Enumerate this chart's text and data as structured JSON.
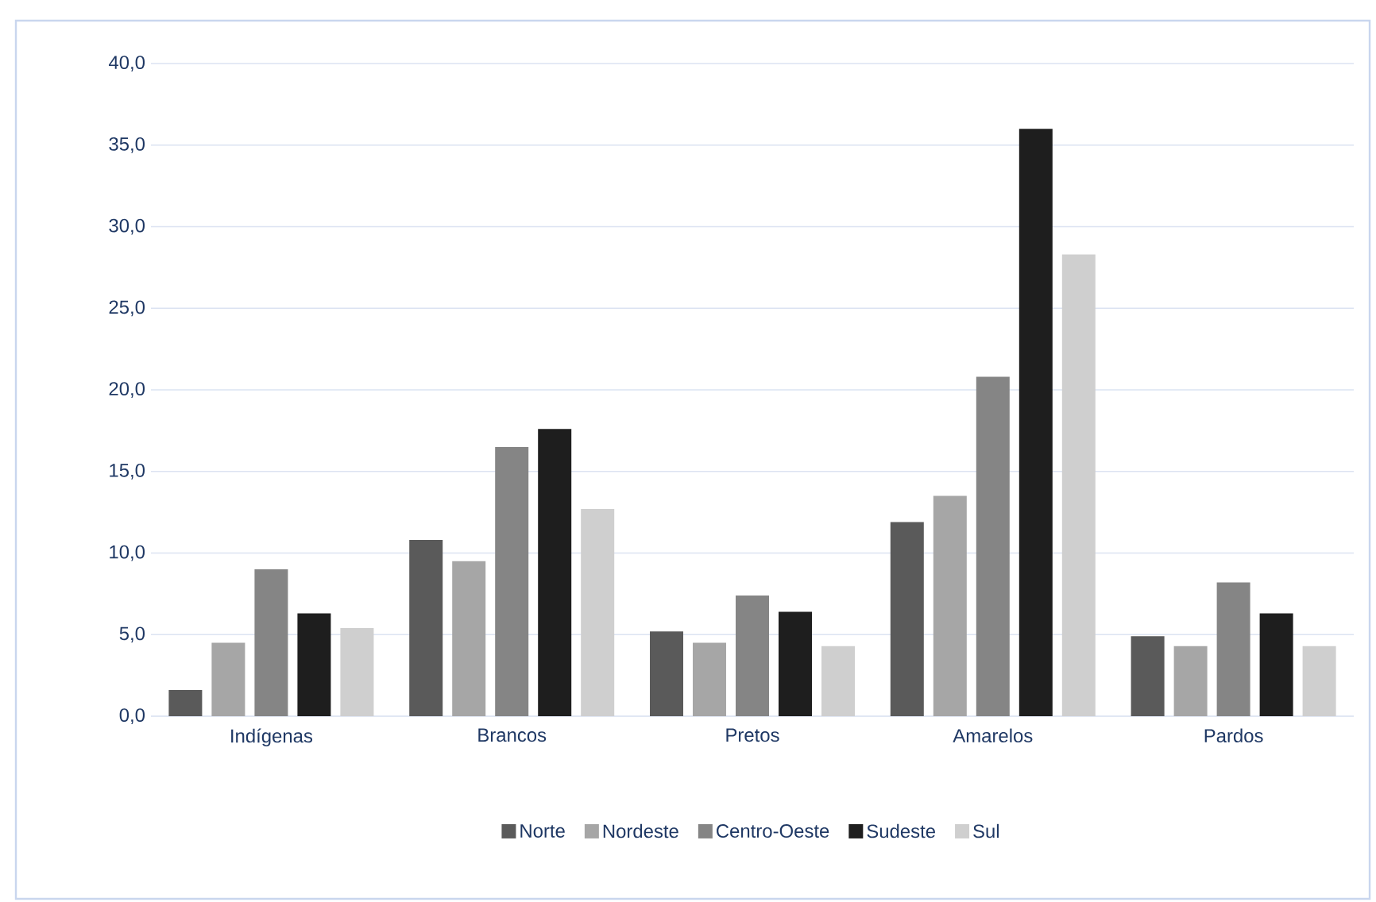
{
  "chart_data": {
    "type": "bar",
    "categories": [
      "Indígenas",
      "Brancos",
      "Pretos",
      "Amarelos",
      "Pardos"
    ],
    "series": [
      {
        "name": "Norte",
        "color": "#5a5a5a",
        "values": [
          1.6,
          10.8,
          5.2,
          11.9,
          4.9
        ]
      },
      {
        "name": "Nordeste",
        "color": "#a6a6a6",
        "values": [
          4.5,
          9.5,
          4.5,
          13.5,
          4.3
        ]
      },
      {
        "name": "Centro-Oeste",
        "color": "#858585",
        "values": [
          9.0,
          16.5,
          7.4,
          20.8,
          8.2
        ]
      },
      {
        "name": "Sudeste",
        "color": "#1e1e1e",
        "values": [
          6.3,
          17.6,
          6.4,
          36.0,
          6.3
        ]
      },
      {
        "name": "Sul",
        "color": "#cfcfcf",
        "values": [
          5.4,
          12.7,
          4.3,
          28.3,
          4.3
        ]
      }
    ],
    "ylim": [
      0,
      40
    ],
    "yticks": [
      {
        "value": 0,
        "label": "0,0"
      },
      {
        "value": 5,
        "label": "5,0"
      },
      {
        "value": 10,
        "label": "10,0"
      },
      {
        "value": 15,
        "label": "15,0"
      },
      {
        "value": 20,
        "label": "20,0"
      },
      {
        "value": 25,
        "label": "25,0"
      },
      {
        "value": 30,
        "label": "30,0"
      },
      {
        "value": 35,
        "label": "35,0"
      },
      {
        "value": 40,
        "label": "40,0"
      }
    ],
    "grid": "y",
    "legend": "bottom"
  }
}
